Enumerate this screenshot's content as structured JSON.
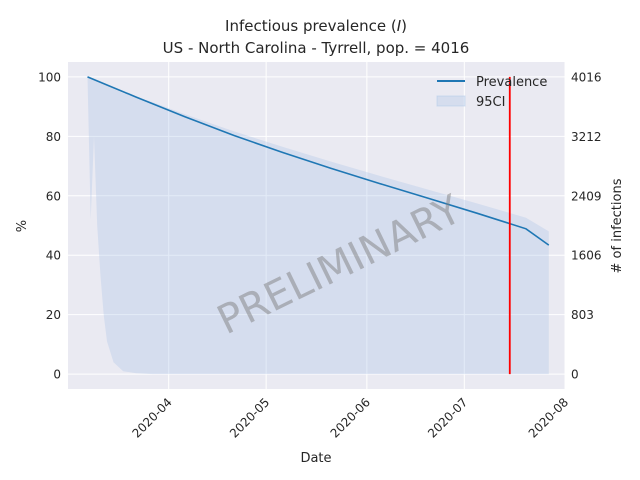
{
  "chart_data": {
    "type": "line",
    "title_prefix": "Infectious prevalence (",
    "title_var": "I",
    "title_suffix": ")",
    "subtitle": "US - North Carolina - Tyrrell, pop. = 4016",
    "xlabel": "Date",
    "ylabel": "%",
    "ylabel_right": "# of infections",
    "x_start": "2020-03-07",
    "x_end": "2020-07-27",
    "xlim": [
      "2020-03-01",
      "2020-08-01"
    ],
    "ylim": [
      -5,
      105
    ],
    "x_ticks": [
      "2020-04",
      "2020-05",
      "2020-06",
      "2020-07",
      "2020-08"
    ],
    "x_tick_dates": [
      "2020-04-01",
      "2020-05-01",
      "2020-06-01",
      "2020-07-01",
      "2020-08-01"
    ],
    "y_ticks": [
      0,
      20,
      40,
      60,
      80,
      100
    ],
    "y_right_ticks": [
      "0",
      "803",
      "1606",
      "2409",
      "3212",
      "4016"
    ],
    "grid": true,
    "legend_position": "top-right",
    "series": [
      {
        "name": "Prevalence",
        "color": "#1f77b4",
        "x": [
          "2020-03-07",
          "2020-03-22",
          "2020-04-06",
          "2020-04-21",
          "2020-05-06",
          "2020-05-21",
          "2020-06-05",
          "2020-06-20",
          "2020-07-05",
          "2020-07-20",
          "2020-07-27"
        ],
        "values": [
          100,
          93.2,
          86.6,
          80.3,
          74.6,
          69.2,
          64.1,
          59.1,
          54.1,
          48.9,
          43.4
        ]
      }
    ],
    "band": {
      "name": "95CI",
      "color": "#aec7e8",
      "x": [
        "2020-03-07",
        "2020-03-08",
        "2020-03-09",
        "2020-03-10",
        "2020-03-11",
        "2020-03-12",
        "2020-03-13",
        "2020-03-15",
        "2020-03-18",
        "2020-03-22",
        "2020-03-27",
        "2020-04-06",
        "2020-04-21",
        "2020-05-06",
        "2020-05-21",
        "2020-06-05",
        "2020-06-20",
        "2020-07-05",
        "2020-07-20",
        "2020-07-27"
      ],
      "upper": [
        100,
        99.5,
        99,
        98.5,
        98,
        97.5,
        97,
        96,
        94.5,
        93.2,
        91.5,
        87.4,
        81.7,
        76.5,
        71.5,
        66.7,
        62.0,
        57.4,
        52.6,
        48
      ],
      "lower": [
        100,
        52,
        80,
        50,
        33,
        20,
        11,
        4,
        1,
        0.3,
        0,
        0,
        0,
        0,
        0,
        0,
        0,
        0,
        0,
        0
      ]
    },
    "vline": {
      "date": "2020-07-15",
      "color": "#ff0000"
    },
    "watermark": "PRELIMINARY"
  }
}
